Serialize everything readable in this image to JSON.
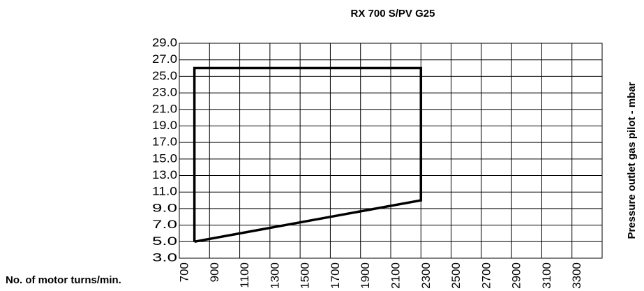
{
  "chart_data": {
    "type": "line",
    "title": "RX 700 S/PV G25",
    "x_label": "No. of motor turns/min.",
    "y_label": "Pressure outlet gas pilot - mbar",
    "grid": true,
    "xlim": [
      700,
      3500
    ],
    "xticks": [
      700,
      900,
      1100,
      1300,
      1500,
      1700,
      1900,
      2100,
      2300,
      2500,
      2700,
      2900,
      3100,
      3300
    ],
    "ylim": [
      3,
      29
    ],
    "yticks": [
      {
        "value": 3,
        "label": "3.0"
      },
      {
        "value": 5,
        "label": "5.0"
      },
      {
        "value": 7,
        "label": "7.0"
      },
      {
        "value": 9,
        "label": "9.0"
      },
      {
        "value": 11,
        "label": "11.0"
      },
      {
        "value": 13,
        "label": "13.0"
      },
      {
        "value": 15,
        "label": "15.0"
      },
      {
        "value": 17,
        "label": "17.0"
      },
      {
        "value": 19,
        "label": "19.0"
      },
      {
        "value": 21,
        "label": "21.0"
      },
      {
        "value": 23,
        "label": "23.0"
      },
      {
        "value": 25,
        "label": "25.0"
      },
      {
        "value": 27,
        "label": "27.0"
      },
      {
        "value": 29,
        "label": "29.0"
      }
    ],
    "x": [
      800,
      800,
      2300,
      2300,
      800
    ],
    "values": [
      5,
      26,
      26,
      10,
      5
    ],
    "color": "#000000"
  }
}
